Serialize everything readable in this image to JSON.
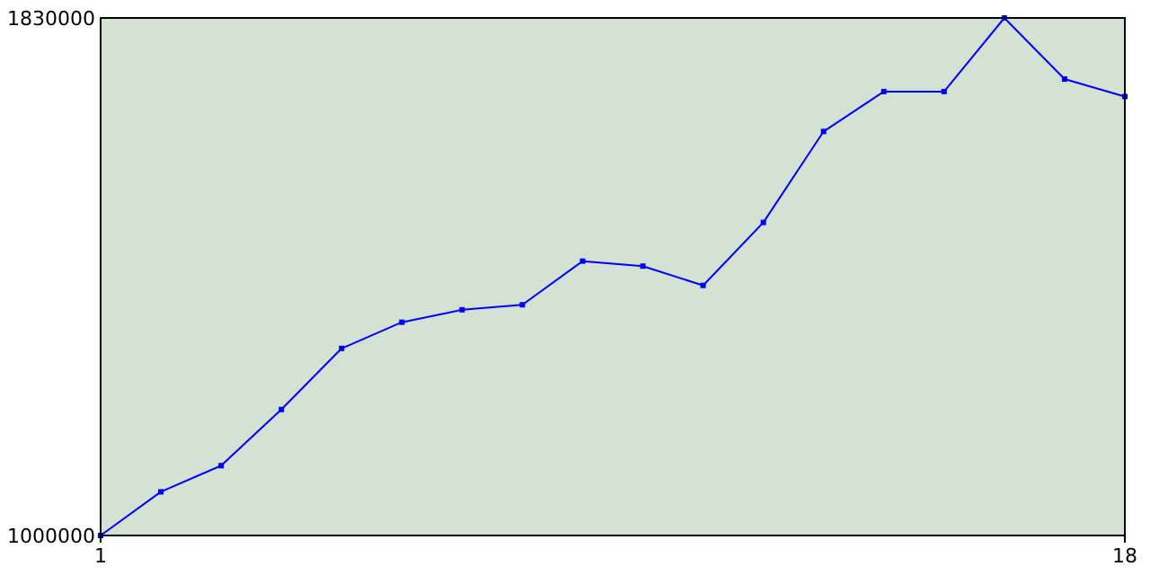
{
  "chart_data": {
    "type": "line",
    "x": [
      1,
      2,
      3,
      4,
      5,
      6,
      7,
      8,
      9,
      10,
      11,
      12,
      13,
      14,
      15,
      16,
      17,
      18
    ],
    "series": [
      {
        "color": "#0000ff",
        "values": [
          1000000,
          1070000,
          1112000,
          1202000,
          1300000,
          1342000,
          1362000,
          1370000,
          1440000,
          1432000,
          1401000,
          1502000,
          1648000,
          1712000,
          1712000,
          1830000,
          1732000,
          1704000
        ]
      }
    ],
    "xlim": [
      1,
      18
    ],
    "xticks": [
      1,
      18
    ],
    "ylim": [
      1000000,
      1830000
    ],
    "yticks": [
      1000000,
      1830000
    ],
    "marker": "square"
  }
}
